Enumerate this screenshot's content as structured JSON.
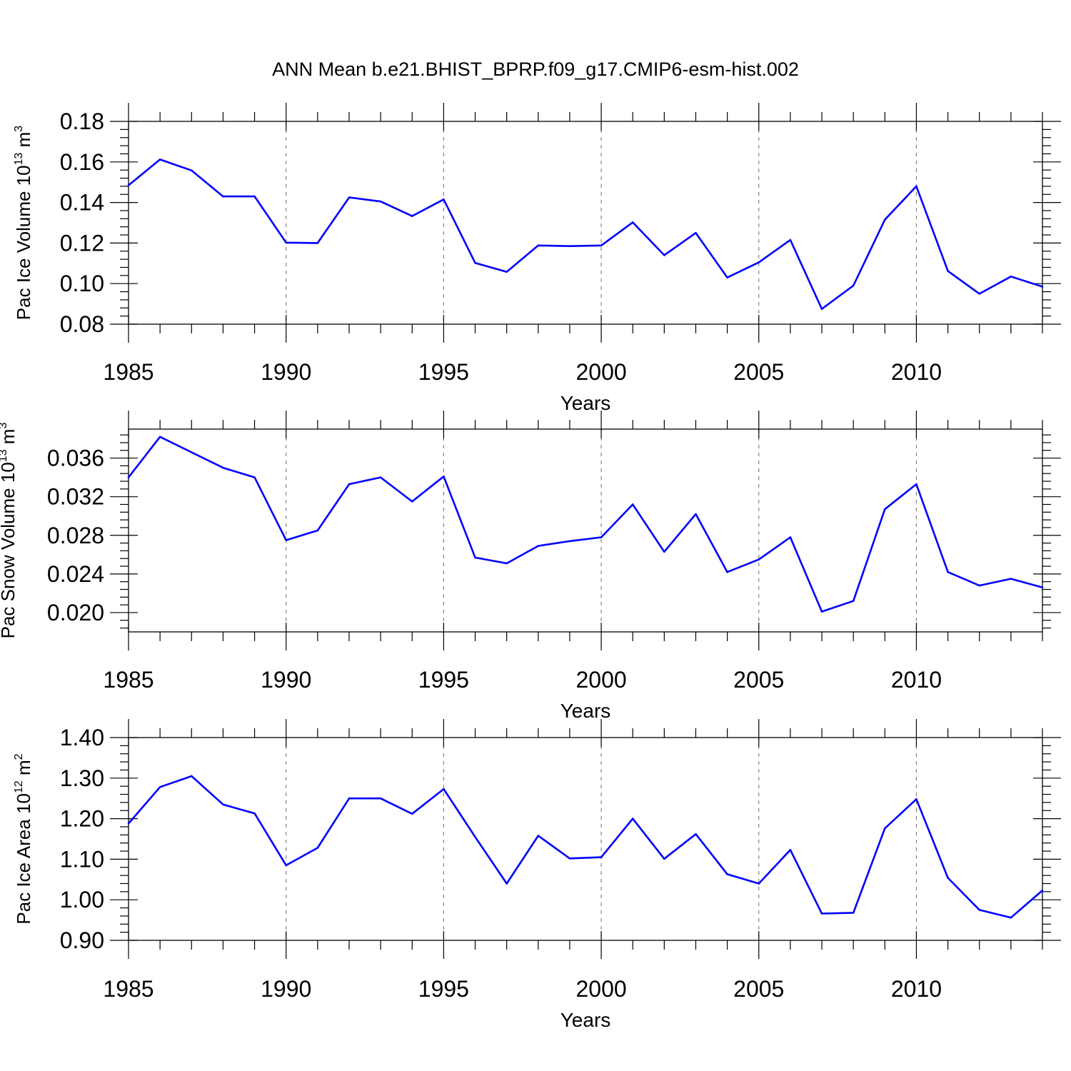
{
  "title": "ANN Mean b.e21.BHIST_BPRP.f09_g17.CMIP6-esm-hist.002",
  "colors": {
    "line": "#0000ff",
    "axis": "#000000",
    "grid": "#808080"
  },
  "chart_data": [
    {
      "type": "line",
      "ylabel": {
        "main": "Pac Ice Volume 10",
        "sup": "13",
        "unit": " m",
        "unit_sup": "3"
      },
      "xlabel": "Years",
      "x_ticks": [
        "1985",
        "1990",
        "1995",
        "2000",
        "2005",
        "2010"
      ],
      "y_ticks": [
        "0.08",
        "0.10",
        "0.12",
        "0.14",
        "0.16",
        "0.18"
      ],
      "xlim": [
        1985,
        2014
      ],
      "ylim": [
        0.08,
        0.18
      ],
      "grid": "vertical dashed at major x ticks",
      "x": [
        1985,
        1986,
        1987,
        1988,
        1989,
        1990,
        1991,
        1992,
        1993,
        1994,
        1995,
        1996,
        1997,
        1998,
        1999,
        2000,
        2001,
        2002,
        2003,
        2004,
        2005,
        2006,
        2007,
        2008,
        2009,
        2010,
        2011,
        2012,
        2013,
        2014
      ],
      "series": [
        {
          "values": [
            0.1485,
            0.1612,
            0.1558,
            0.143,
            0.143,
            0.1202,
            0.12,
            0.1425,
            0.1405,
            0.1333,
            0.1415,
            0.1102,
            0.1058,
            0.1188,
            0.1185,
            0.1188,
            0.1302,
            0.114,
            0.125,
            0.103,
            0.1105,
            0.1215,
            0.0875,
            0.099,
            0.1315,
            0.148,
            0.1062,
            0.095,
            0.1035,
            0.0985
          ]
        }
      ]
    },
    {
      "type": "line",
      "ylabel": {
        "main": "Pac Snow Volume 10",
        "sup": "13",
        "unit": " m",
        "unit_sup": "3"
      },
      "xlabel": "Years",
      "x_ticks": [
        "1985",
        "1990",
        "1995",
        "2000",
        "2005",
        "2010"
      ],
      "y_ticks": [
        "0.020",
        "0.024",
        "0.028",
        "0.032",
        "0.036"
      ],
      "xlim": [
        1985,
        2014
      ],
      "ylim": [
        0.018,
        0.039
      ],
      "grid": "vertical dashed at major x ticks",
      "x": [
        1985,
        1986,
        1987,
        1988,
        1989,
        1990,
        1991,
        1992,
        1993,
        1994,
        1995,
        1996,
        1997,
        1998,
        1999,
        2000,
        2001,
        2002,
        2003,
        2004,
        2005,
        2006,
        2007,
        2008,
        2009,
        2010,
        2011,
        2012,
        2013,
        2014
      ],
      "series": [
        {
          "values": [
            0.034,
            0.0382,
            0.0366,
            0.035,
            0.034,
            0.0275,
            0.0285,
            0.0333,
            0.034,
            0.0315,
            0.0341,
            0.0257,
            0.0251,
            0.0269,
            0.0274,
            0.0278,
            0.0312,
            0.0263,
            0.0302,
            0.0242,
            0.0255,
            0.0278,
            0.0201,
            0.0212,
            0.0307,
            0.0333,
            0.0242,
            0.0228,
            0.0235,
            0.0226
          ]
        }
      ]
    },
    {
      "type": "line",
      "ylabel": {
        "main": "Pac Ice Area 10",
        "sup": "12",
        "unit": " m",
        "unit_sup": "2"
      },
      "xlabel": "Years",
      "x_ticks": [
        "1985",
        "1990",
        "1995",
        "2000",
        "2005",
        "2010"
      ],
      "y_ticks": [
        "0.90",
        "1.00",
        "1.10",
        "1.20",
        "1.30",
        "1.40"
      ],
      "xlim": [
        1985,
        2014
      ],
      "ylim": [
        0.9,
        1.4
      ],
      "grid": "vertical dashed at major x ticks",
      "x": [
        1985,
        1986,
        1987,
        1988,
        1989,
        1990,
        1991,
        1992,
        1993,
        1994,
        1995,
        1996,
        1997,
        1998,
        1999,
        2000,
        2001,
        2002,
        2003,
        2004,
        2005,
        2006,
        2007,
        2008,
        2009,
        2010,
        2011,
        2012,
        2013,
        2014
      ],
      "series": [
        {
          "values": [
            1.188,
            1.278,
            1.305,
            1.235,
            1.213,
            1.085,
            1.128,
            1.25,
            1.25,
            1.212,
            1.273,
            1.155,
            1.04,
            1.158,
            1.102,
            1.105,
            1.2,
            1.101,
            1.162,
            1.063,
            1.04,
            1.123,
            0.966,
            0.968,
            1.176,
            1.248,
            1.054,
            0.975,
            0.956,
            1.023
          ]
        }
      ]
    }
  ]
}
